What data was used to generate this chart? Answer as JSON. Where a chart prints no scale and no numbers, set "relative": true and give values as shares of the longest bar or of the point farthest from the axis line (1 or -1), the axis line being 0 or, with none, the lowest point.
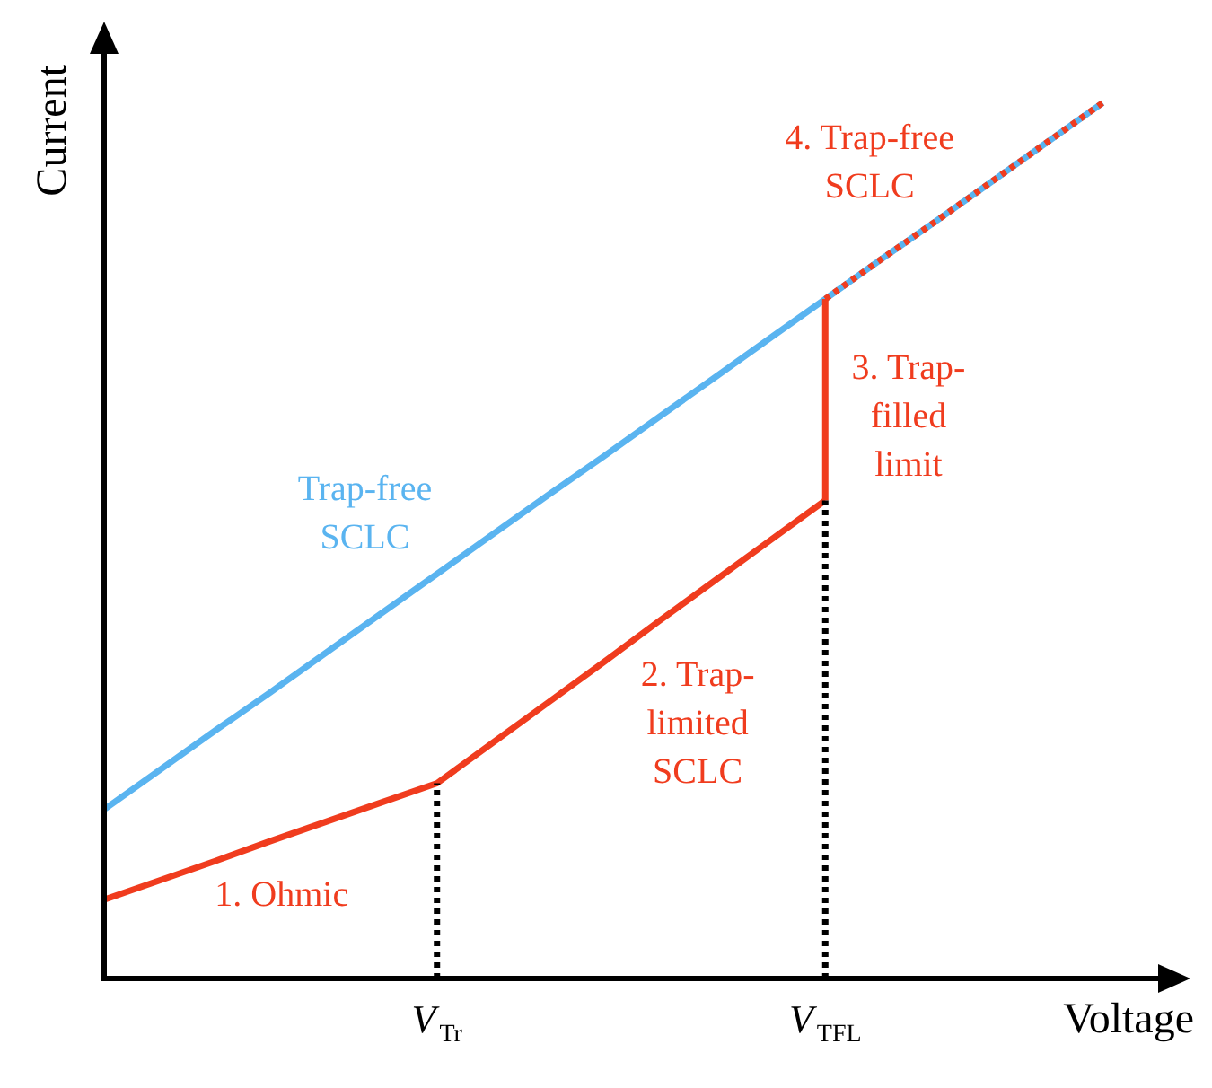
{
  "chart_data": {
    "type": "line",
    "relative": true,
    "xlabel": "Voltage",
    "ylabel": "Current",
    "categories": [
      null,
      null,
      null,
      null,
      null,
      null,
      "V$_{Tr}$",
      null,
      null,
      null,
      null,
      null,
      null,
      "V$_{TFL}$",
      null,
      null,
      null,
      null,
      null,
      null
    ],
    "line_style": "solid",
    "legend": false,
    "annotations": [
      "1. Ohmic",
      "2. Trap-limited SCLC",
      "3. Trap-filled limit",
      "4. Trap-free SCLC"
    ],
    "series": [
      {
        "name": "Trap-free SCLC",
        "color": "#5ab4f0",
        "values": [
          0.193,
          0.238,
          0.283,
          0.327,
          0.372,
          0.417,
          0.462,
          0.507,
          0.552,
          0.596,
          0.641,
          0.686,
          0.731,
          0.776,
          0.821,
          0.865,
          0.91,
          0.955,
          1.0,
          null
        ]
      },
      {
        "color": "#f03c1e",
        "values": [
          0.09,
          0.112,
          0.134,
          0.157,
          0.179,
          0.201,
          0.223,
          0.269,
          0.315,
          0.361,
          0.408,
          0.454,
          0.5,
          0.546,
          null,
          null,
          null,
          null,
          null,
          null
        ]
      },
      {
        "color": "#f03c1e",
        "x": [
          "V$_{TFL}$",
          "V$_{TFL}$"
        ],
        "values": [
          0.546,
          0.776
        ]
      },
      {
        "color": "#f03c1e",
        "values": [
          null,
          null,
          null,
          null,
          null,
          null,
          null,
          null,
          null,
          null,
          null,
          null,
          null,
          0.776,
          0.821,
          0.865,
          0.91,
          0.955,
          1.0,
          null
        ],
        "line_style": "dotted"
      },
      {
        "color": "#000000",
        "x": [
          "V$_{Tr}$",
          "V$_{Tr}$"
        ],
        "values": [
          0,
          0.223
        ],
        "line_style": "dotted"
      },
      {
        "color": "#000000",
        "x": [
          "V$_{TFL}$",
          "V$_{TFL}$"
        ],
        "values": [
          0,
          0.546
        ],
        "line_style": "dotted"
      }
    ]
  }
}
